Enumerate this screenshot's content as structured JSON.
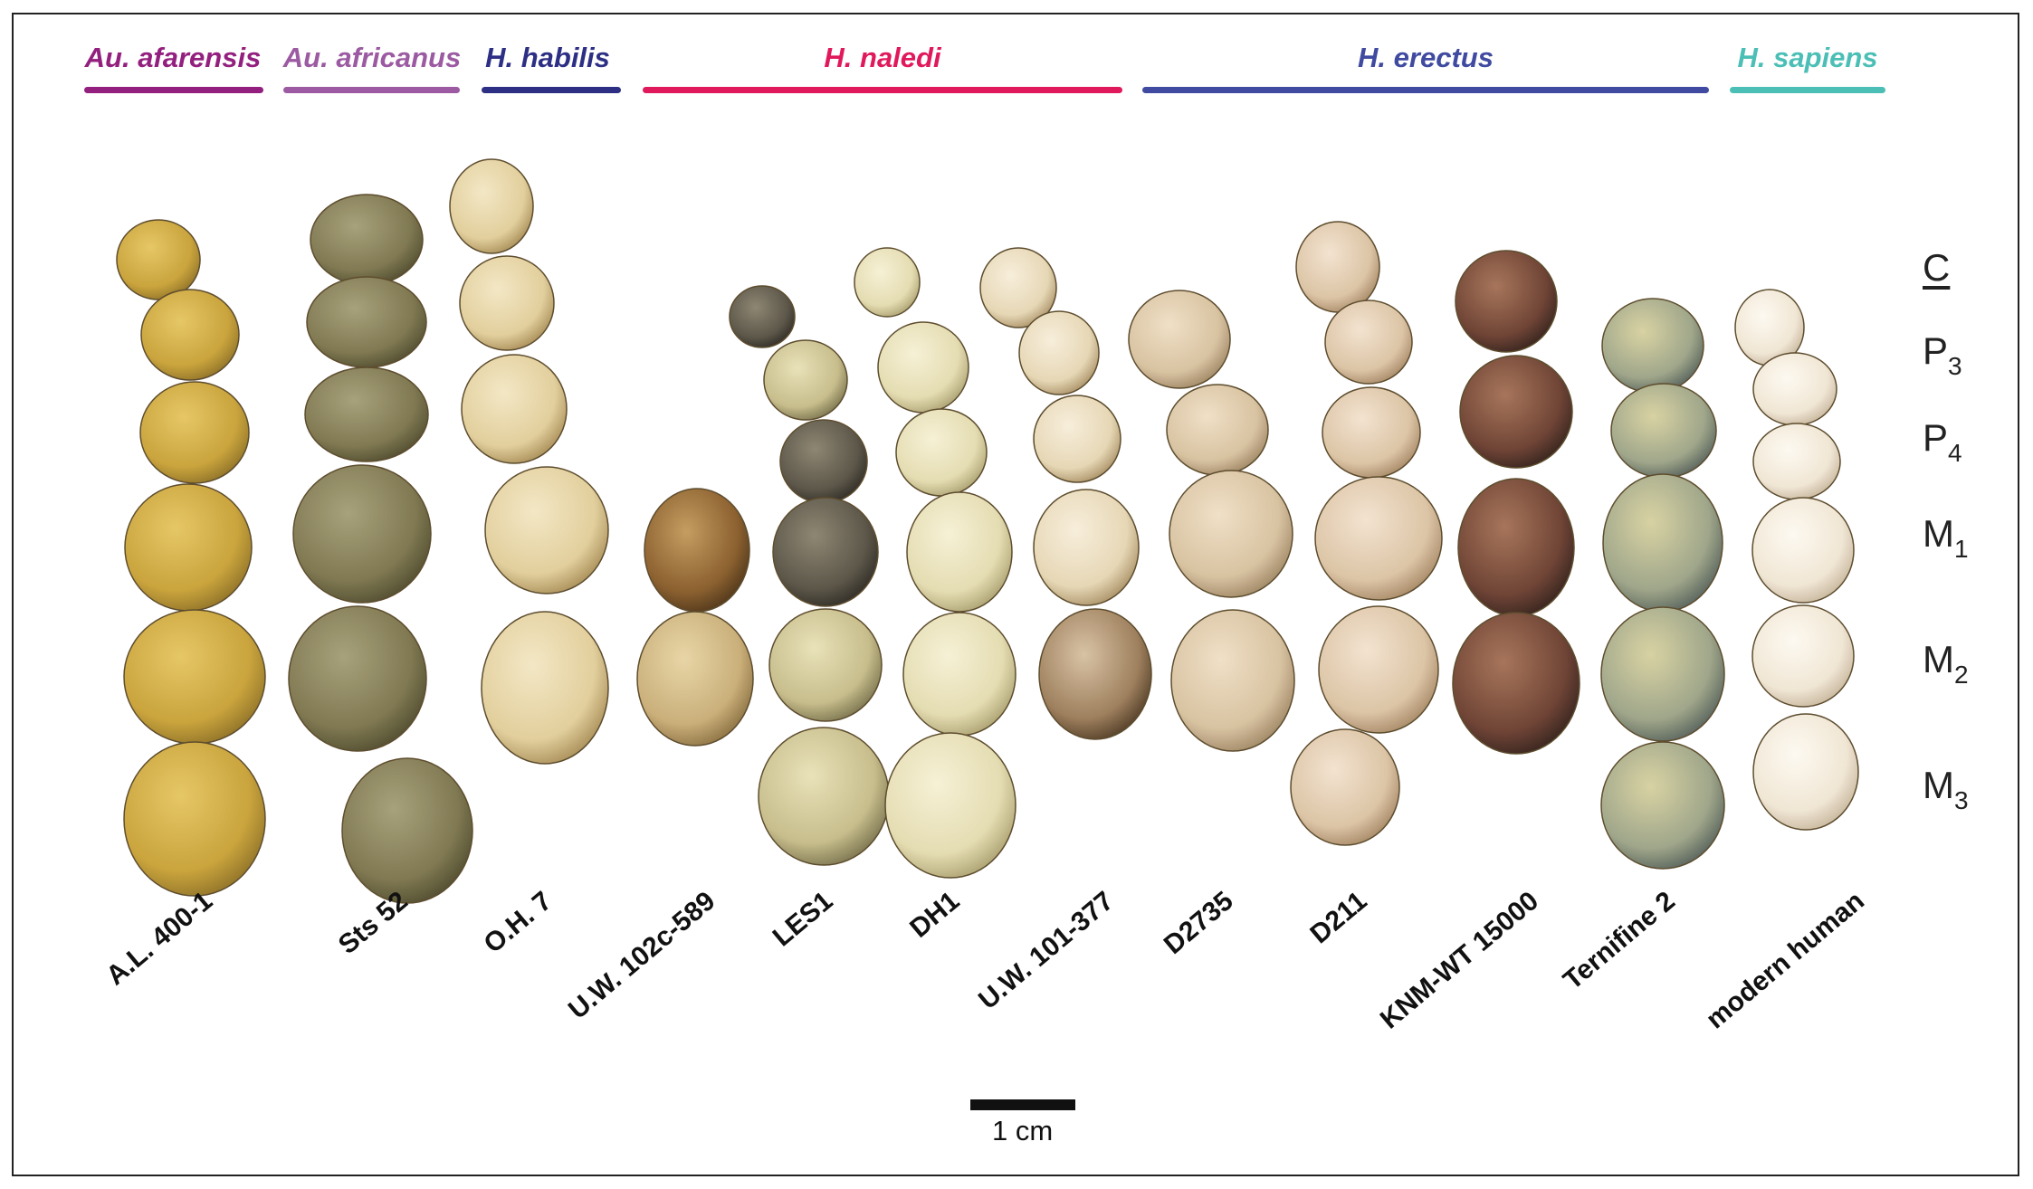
{
  "taxa": [
    {
      "id": "afarensis",
      "label": "Au. afarensis",
      "color": "#93207e"
    },
    {
      "id": "africanus",
      "label": "Au. africanus",
      "color": "#9b5aa1"
    },
    {
      "id": "habilis",
      "label": "H. habilis",
      "color": "#2d2f84"
    },
    {
      "id": "naledi",
      "label": "H. naledi",
      "color": "#e0185c"
    },
    {
      "id": "erectus",
      "label": "H. erectus",
      "color": "#3f4aa0"
    },
    {
      "id": "sapiens",
      "label": "H. sapiens",
      "color": "#4bbfb6"
    }
  ],
  "specimens": [
    "A.L. 400-1",
    "Sts 52",
    "O.H. 7",
    "U.W. 102c-589",
    "LES1",
    "DH1",
    "U.W. 101-377",
    "D2735",
    "D211",
    "KNM-WT 15000",
    "Ternifine 2",
    "modern human"
  ],
  "tooth_labels": [
    {
      "base": "C",
      "sub": "",
      "underline": true
    },
    {
      "base": "P",
      "sub": "3",
      "underline": false
    },
    {
      "base": "P",
      "sub": "4",
      "underline": false
    },
    {
      "base": "M",
      "sub": "1",
      "underline": false
    },
    {
      "base": "M",
      "sub": "2",
      "underline": false
    },
    {
      "base": "M",
      "sub": "3",
      "underline": false
    }
  ],
  "scale": {
    "label": "1 cm"
  }
}
